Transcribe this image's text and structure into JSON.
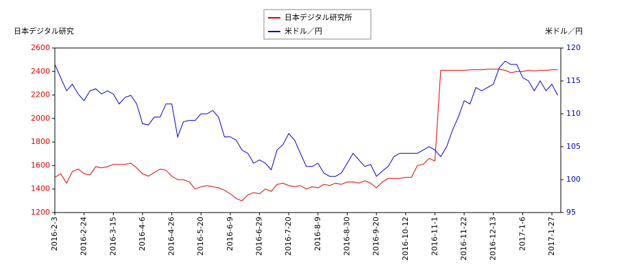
{
  "chart_data": {
    "type": "line",
    "y_label": "日本デジタル研究",
    "y2_label": "米ドル／円",
    "categories": [
      "2016-2-3",
      null,
      null,
      null,
      null,
      "2016-2-24",
      null,
      null,
      null,
      null,
      "2016-3-15",
      null,
      null,
      null,
      null,
      "2016-4-6",
      null,
      null,
      null,
      null,
      "2016-4-26",
      null,
      null,
      null,
      null,
      "2016-5-20",
      null,
      null,
      null,
      null,
      "2016-6-9",
      null,
      null,
      null,
      null,
      "2016-6-29",
      null,
      null,
      null,
      null,
      "2016-7-20",
      null,
      null,
      null,
      null,
      "2016-8-9",
      null,
      null,
      null,
      null,
      "2016-8-30",
      null,
      null,
      null,
      null,
      "2016-9-20",
      null,
      null,
      null,
      null,
      "2016-10-12",
      null,
      null,
      null,
      null,
      "2016-11-1",
      null,
      null,
      null,
      null,
      "2016-11-22",
      null,
      null,
      null,
      null,
      "2016-12-13",
      null,
      null,
      null,
      null,
      "2017-1-6",
      null,
      null,
      null,
      null,
      "2017-1-27",
      null
    ],
    "series": [
      {
        "name": "日本デジタル研究所",
        "color": "#dd0000",
        "axis": "y",
        "values": [
          1500,
          1530,
          1450,
          1550,
          1570,
          1530,
          1520,
          1590,
          1580,
          1590,
          1610,
          1610,
          1610,
          1620,
          1580,
          1530,
          1510,
          1540,
          1570,
          1560,
          1510,
          1480,
          1480,
          1460,
          1400,
          1420,
          1430,
          1420,
          1410,
          1390,
          1360,
          1320,
          1300,
          1350,
          1370,
          1360,
          1400,
          1380,
          1440,
          1450,
          1430,
          1420,
          1430,
          1400,
          1420,
          1410,
          1440,
          1430,
          1450,
          1440,
          1460,
          1460,
          1450,
          1470,
          1450,
          1410,
          1460,
          1490,
          1490,
          1490,
          1500,
          1500,
          1600,
          1610,
          1660,
          1640,
          2410,
          2410,
          2410,
          2410,
          2410,
          2415,
          2415,
          2415,
          2420,
          2420,
          2420,
          2410,
          2390,
          2400,
          2400,
          2410,
          2405,
          2410,
          2410,
          2415,
          2415
        ]
      },
      {
        "name": "米ドル／円",
        "color": "#0000cc",
        "axis": "y2",
        "values": [
          117.5,
          115.5,
          113.5,
          114.5,
          113,
          112,
          113.5,
          113.8,
          113,
          113.5,
          113,
          111.5,
          112.5,
          112.8,
          111.5,
          108.5,
          108.3,
          109.5,
          109.5,
          111.5,
          111.5,
          106.5,
          108.8,
          109,
          109,
          110,
          110,
          110.5,
          109.5,
          106.5,
          106.5,
          106,
          104.5,
          104,
          102.5,
          103,
          102.5,
          101.5,
          104.5,
          105.3,
          107,
          106,
          104,
          102,
          102,
          102.5,
          101,
          100.5,
          100.5,
          101,
          102.5,
          104,
          103,
          102,
          102.3,
          100.5,
          101.3,
          102,
          103.5,
          104,
          104,
          104,
          104,
          104.5,
          105,
          104.5,
          103.5,
          105,
          107.5,
          109.5,
          112,
          111.5,
          114,
          113.5,
          114,
          114.5,
          117,
          118,
          117.5,
          117.5,
          115.5,
          115,
          113.5,
          115,
          113.5,
          114.5,
          112.8
        ]
      }
    ],
    "ylim": [
      1200,
      2600
    ],
    "yticks": [
      1200,
      1400,
      1600,
      1800,
      2000,
      2200,
      2400,
      2600
    ],
    "y2lim": [
      95,
      120
    ],
    "y2ticks": [
      95,
      100,
      105,
      110,
      115,
      120
    ],
    "grid": false,
    "legend": "top"
  }
}
